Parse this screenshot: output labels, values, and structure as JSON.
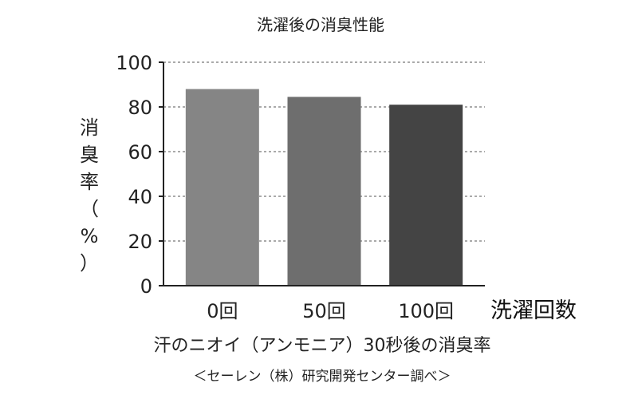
{
  "chart_data": {
    "type": "bar",
    "title": "洗濯後の消臭性能",
    "xlabel": "洗濯回数",
    "ylabel": "消臭率（%）",
    "categories": [
      "0回",
      "50回",
      "100回"
    ],
    "values": [
      88,
      84.5,
      81
    ],
    "colors": [
      "#858585",
      "#6e6e6e",
      "#444444"
    ],
    "ylim": [
      0,
      100
    ],
    "yticks": [
      0,
      20,
      40,
      60,
      80,
      100
    ],
    "grid": "dashed-horizontal",
    "legend": "none"
  },
  "caption": "汗のニオイ（アンモニア）30秒後の消臭率",
  "source": "＜セーレン（株）研究開発センター調べ＞"
}
